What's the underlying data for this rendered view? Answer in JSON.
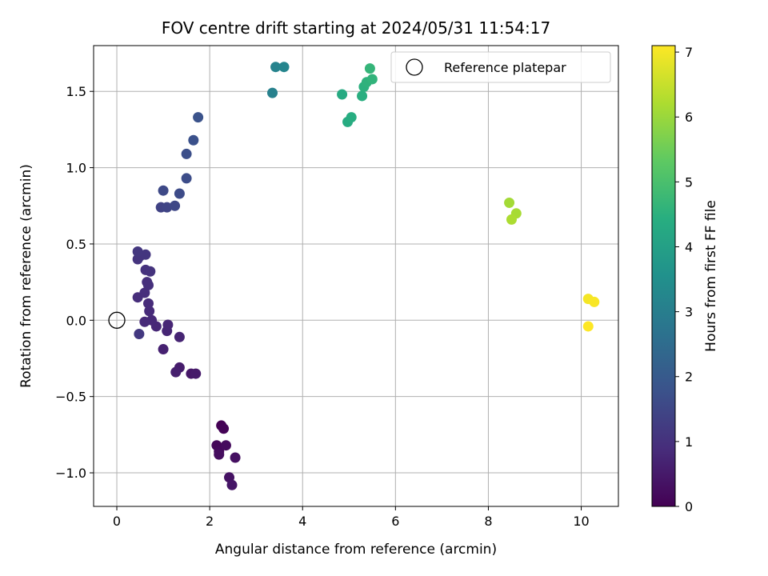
{
  "chart_data": {
    "type": "scatter",
    "title": "FOV centre drift starting at 2024/05/31 11:54:17",
    "xlabel": "Angular distance from reference (arcmin)",
    "ylabel": "Rotation from reference (arcmin)",
    "xlim": [
      -0.5,
      10.8
    ],
    "ylim": [
      -1.22,
      1.8
    ],
    "xticks": [
      0,
      2,
      4,
      6,
      8,
      10
    ],
    "yticks": [
      -1.0,
      -0.5,
      0.0,
      0.5,
      1.0,
      1.5
    ],
    "xtick_labels": [
      "0",
      "2",
      "4",
      "6",
      "8",
      "10"
    ],
    "ytick_labels": [
      "−1.0",
      "−0.5",
      "0.0",
      "0.5",
      "1.0",
      "1.5"
    ],
    "grid": true,
    "colormap": "viridis",
    "legend": {
      "position": "top-right",
      "entries": [
        {
          "label": "Reference platepar",
          "marker": "open-circle"
        }
      ]
    },
    "reference_point": {
      "x": 0,
      "y": 0
    },
    "colorbar": {
      "label": "Hours from first FF file",
      "range": [
        0,
        7.1
      ],
      "ticks": [
        0,
        1,
        2,
        3,
        4,
        5,
        6,
        7
      ],
      "tick_labels": [
        "0",
        "1",
        "2",
        "3",
        "4",
        "5",
        "6",
        "7"
      ]
    },
    "points": [
      {
        "x": 2.25,
        "y": -0.69,
        "t": 0.0
      },
      {
        "x": 2.3,
        "y": -0.71,
        "t": 0.05
      },
      {
        "x": 2.15,
        "y": -0.82,
        "t": 0.1
      },
      {
        "x": 2.2,
        "y": -0.86,
        "t": 0.15
      },
      {
        "x": 2.35,
        "y": -0.82,
        "t": 0.2
      },
      {
        "x": 2.2,
        "y": -0.88,
        "t": 0.25
      },
      {
        "x": 2.55,
        "y": -0.9,
        "t": 0.3
      },
      {
        "x": 2.42,
        "y": -1.03,
        "t": 0.35
      },
      {
        "x": 2.48,
        "y": -1.08,
        "t": 0.4
      },
      {
        "x": 1.6,
        "y": -0.35,
        "t": 0.45
      },
      {
        "x": 1.7,
        "y": -0.35,
        "t": 0.5
      },
      {
        "x": 1.35,
        "y": -0.31,
        "t": 0.55
      },
      {
        "x": 1.27,
        "y": -0.34,
        "t": 0.6
      },
      {
        "x": 1.0,
        "y": -0.19,
        "t": 0.65
      },
      {
        "x": 1.35,
        "y": -0.11,
        "t": 0.7
      },
      {
        "x": 1.08,
        "y": -0.07,
        "t": 0.72
      },
      {
        "x": 1.1,
        "y": -0.03,
        "t": 0.75
      },
      {
        "x": 0.85,
        "y": -0.04,
        "t": 0.78
      },
      {
        "x": 0.75,
        "y": 0.0,
        "t": 0.8
      },
      {
        "x": 0.6,
        "y": -0.01,
        "t": 0.82
      },
      {
        "x": 0.7,
        "y": 0.06,
        "t": 0.85
      },
      {
        "x": 0.68,
        "y": 0.11,
        "t": 0.87
      },
      {
        "x": 0.45,
        "y": 0.15,
        "t": 0.9
      },
      {
        "x": 0.6,
        "y": 0.18,
        "t": 0.92
      },
      {
        "x": 0.68,
        "y": 0.23,
        "t": 0.95
      },
      {
        "x": 0.65,
        "y": 0.25,
        "t": 0.97
      },
      {
        "x": 0.62,
        "y": 0.33,
        "t": 1.0
      },
      {
        "x": 0.72,
        "y": 0.32,
        "t": 1.02
      },
      {
        "x": 0.45,
        "y": 0.4,
        "t": 1.05
      },
      {
        "x": 0.5,
        "y": 0.42,
        "t": 1.07
      },
      {
        "x": 0.62,
        "y": 0.43,
        "t": 1.1
      },
      {
        "x": 0.45,
        "y": 0.45,
        "t": 1.12
      },
      {
        "x": 0.48,
        "y": -0.09,
        "t": 1.15
      },
      {
        "x": 0.95,
        "y": 0.74,
        "t": 1.4
      },
      {
        "x": 1.08,
        "y": 0.74,
        "t": 1.45
      },
      {
        "x": 1.25,
        "y": 0.75,
        "t": 1.5
      },
      {
        "x": 1.0,
        "y": 0.85,
        "t": 1.55
      },
      {
        "x": 1.35,
        "y": 0.83,
        "t": 1.6
      },
      {
        "x": 1.5,
        "y": 0.93,
        "t": 1.65
      },
      {
        "x": 1.5,
        "y": 1.09,
        "t": 1.7
      },
      {
        "x": 1.65,
        "y": 1.18,
        "t": 1.75
      },
      {
        "x": 1.75,
        "y": 1.33,
        "t": 1.8
      },
      {
        "x": 3.35,
        "y": 1.49,
        "t": 3.1
      },
      {
        "x": 3.42,
        "y": 1.66,
        "t": 3.15
      },
      {
        "x": 3.6,
        "y": 1.66,
        "t": 3.2
      },
      {
        "x": 4.85,
        "y": 1.48,
        "t": 4.3
      },
      {
        "x": 4.97,
        "y": 1.3,
        "t": 4.35
      },
      {
        "x": 5.05,
        "y": 1.33,
        "t": 4.4
      },
      {
        "x": 5.28,
        "y": 1.47,
        "t": 4.45
      },
      {
        "x": 5.32,
        "y": 1.53,
        "t": 4.5
      },
      {
        "x": 5.38,
        "y": 1.56,
        "t": 4.55
      },
      {
        "x": 5.5,
        "y": 1.58,
        "t": 4.6
      },
      {
        "x": 5.45,
        "y": 1.65,
        "t": 4.65
      },
      {
        "x": 8.45,
        "y": 0.77,
        "t": 6.1
      },
      {
        "x": 8.6,
        "y": 0.7,
        "t": 6.15
      },
      {
        "x": 8.5,
        "y": 0.66,
        "t": 6.2
      },
      {
        "x": 10.15,
        "y": 0.14,
        "t": 7.0
      },
      {
        "x": 10.28,
        "y": 0.12,
        "t": 7.05
      },
      {
        "x": 10.15,
        "y": -0.04,
        "t": 7.1
      }
    ]
  }
}
